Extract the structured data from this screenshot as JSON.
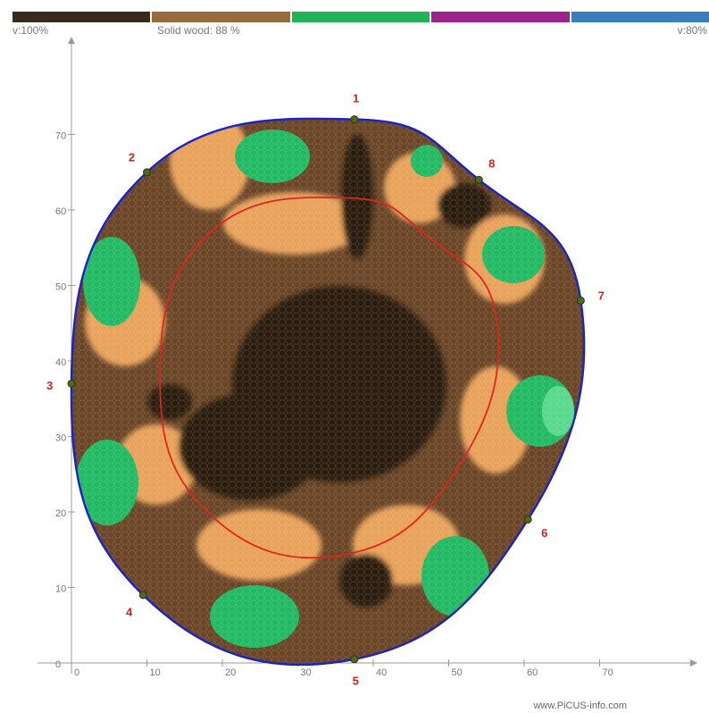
{
  "legend": {
    "colors": [
      "#3a2a19",
      "#9a6a3b",
      "#1fb45a",
      "#9b2389",
      "#3a7ebd"
    ],
    "velocity_left": "v:100%",
    "solid_wood": "Solid wood: 88 %",
    "velocity_right": "v:80%"
  },
  "chart_data": {
    "type": "tomogram",
    "x_ticks": [
      "0",
      "10",
      "20",
      "30",
      "40",
      "50",
      "60",
      "70"
    ],
    "y_ticks": [
      "0",
      "10",
      "20",
      "30",
      "40",
      "50",
      "60",
      "70"
    ],
    "xlim": [
      0,
      82
    ],
    "ylim": [
      0,
      82
    ],
    "sensors": [
      {
        "label": "1",
        "x": 37.5,
        "y": 72
      },
      {
        "label": "2",
        "x": 10,
        "y": 65
      },
      {
        "label": "3",
        "x": 0,
        "y": 37
      },
      {
        "label": "4",
        "x": 9.5,
        "y": 9
      },
      {
        "label": "5",
        "x": 37.5,
        "y": 0.5
      },
      {
        "label": "6",
        "x": 60.5,
        "y": 19
      },
      {
        "label": "7",
        "x": 67.5,
        "y": 48
      },
      {
        "label": "8",
        "x": 54,
        "y": 64
      }
    ],
    "colors": {
      "outline": "#1a23c8",
      "inner_line": "#e1251c",
      "sound_dark": "#2a1a0f",
      "sound_medium": "#6a4526",
      "intermediate": "#e8a25a",
      "decay": "#22b963",
      "decay_light": "#58d98b"
    }
  },
  "footer": "www.PiCUS-info.com"
}
